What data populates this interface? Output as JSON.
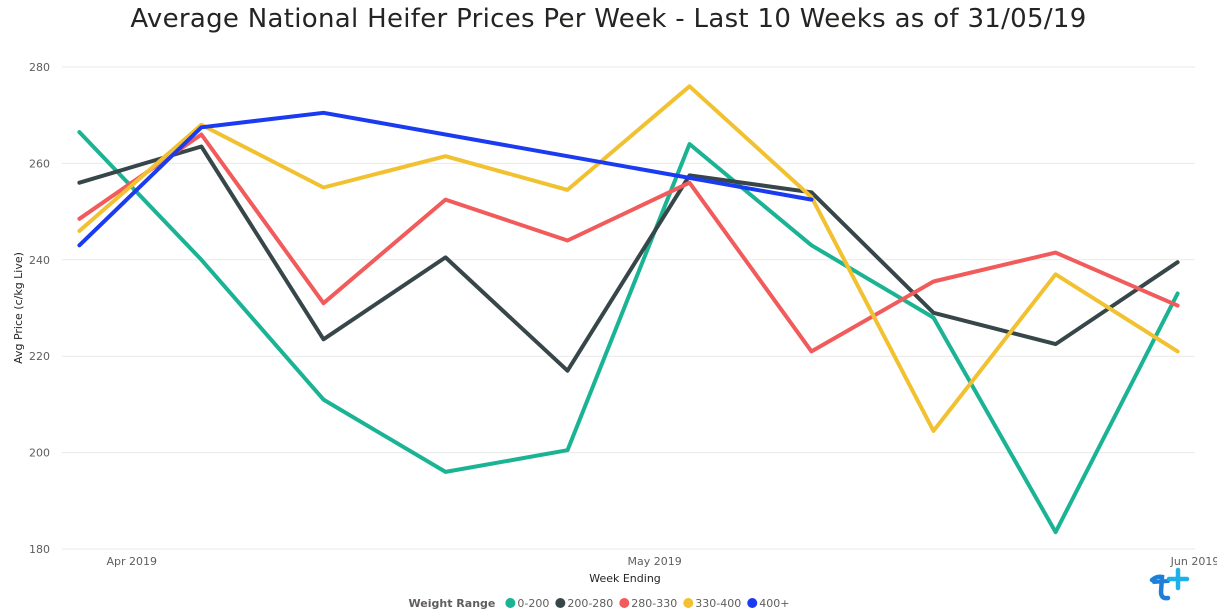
{
  "chart_data": {
    "type": "line",
    "title": "Average National Heifer Prices Per Week - Last 10 Weeks as of 31/05/19",
    "xlabel": "Week Ending",
    "ylabel": "Avg Price (c/kg Live)",
    "x": [
      "2019-03-29",
      "2019-04-05",
      "2019-04-12",
      "2019-04-19",
      "2019-04-26",
      "2019-05-03",
      "2019-05-10",
      "2019-05-17",
      "2019-05-24",
      "2019-05-31"
    ],
    "xlim": [
      "2019-03-28",
      "2019-06-01"
    ],
    "x_ticks": [
      {
        "date": "2019-04-01",
        "label": "Apr 2019"
      },
      {
        "date": "2019-05-01",
        "label": "May 2019"
      },
      {
        "date": "2019-06-01",
        "label": "Jun 2019"
      }
    ],
    "ylim": [
      180,
      280
    ],
    "y_ticks": [
      180,
      200,
      220,
      240,
      260,
      280
    ],
    "grid": true,
    "legend": {
      "title": "Weight Range",
      "placement": "bottom-center"
    },
    "series": [
      {
        "name": "0-200",
        "color": "#1ab394",
        "values": [
          266.5,
          240,
          211,
          196,
          200.5,
          264,
          243,
          228,
          183.5,
          233
        ]
      },
      {
        "name": "200-280",
        "color": "#374649",
        "values": [
          256,
          263.5,
          223.5,
          240.5,
          217,
          257.5,
          254,
          229,
          222.5,
          239.5
        ]
      },
      {
        "name": "280-330",
        "color": "#f15b5b",
        "values": [
          248.5,
          266,
          231,
          252.5,
          244,
          256,
          221,
          235.5,
          241.5,
          230.5
        ]
      },
      {
        "name": "330-400",
        "color": "#f2c131",
        "values": [
          246,
          268,
          255,
          261.5,
          254.5,
          276,
          253,
          204.5,
          237,
          221
        ]
      },
      {
        "name": "400+",
        "color": "#1a3bf0",
        "values": [
          243,
          267.5,
          270.5,
          null,
          null,
          null,
          252.5,
          null,
          null,
          null
        ]
      }
    ]
  }
}
